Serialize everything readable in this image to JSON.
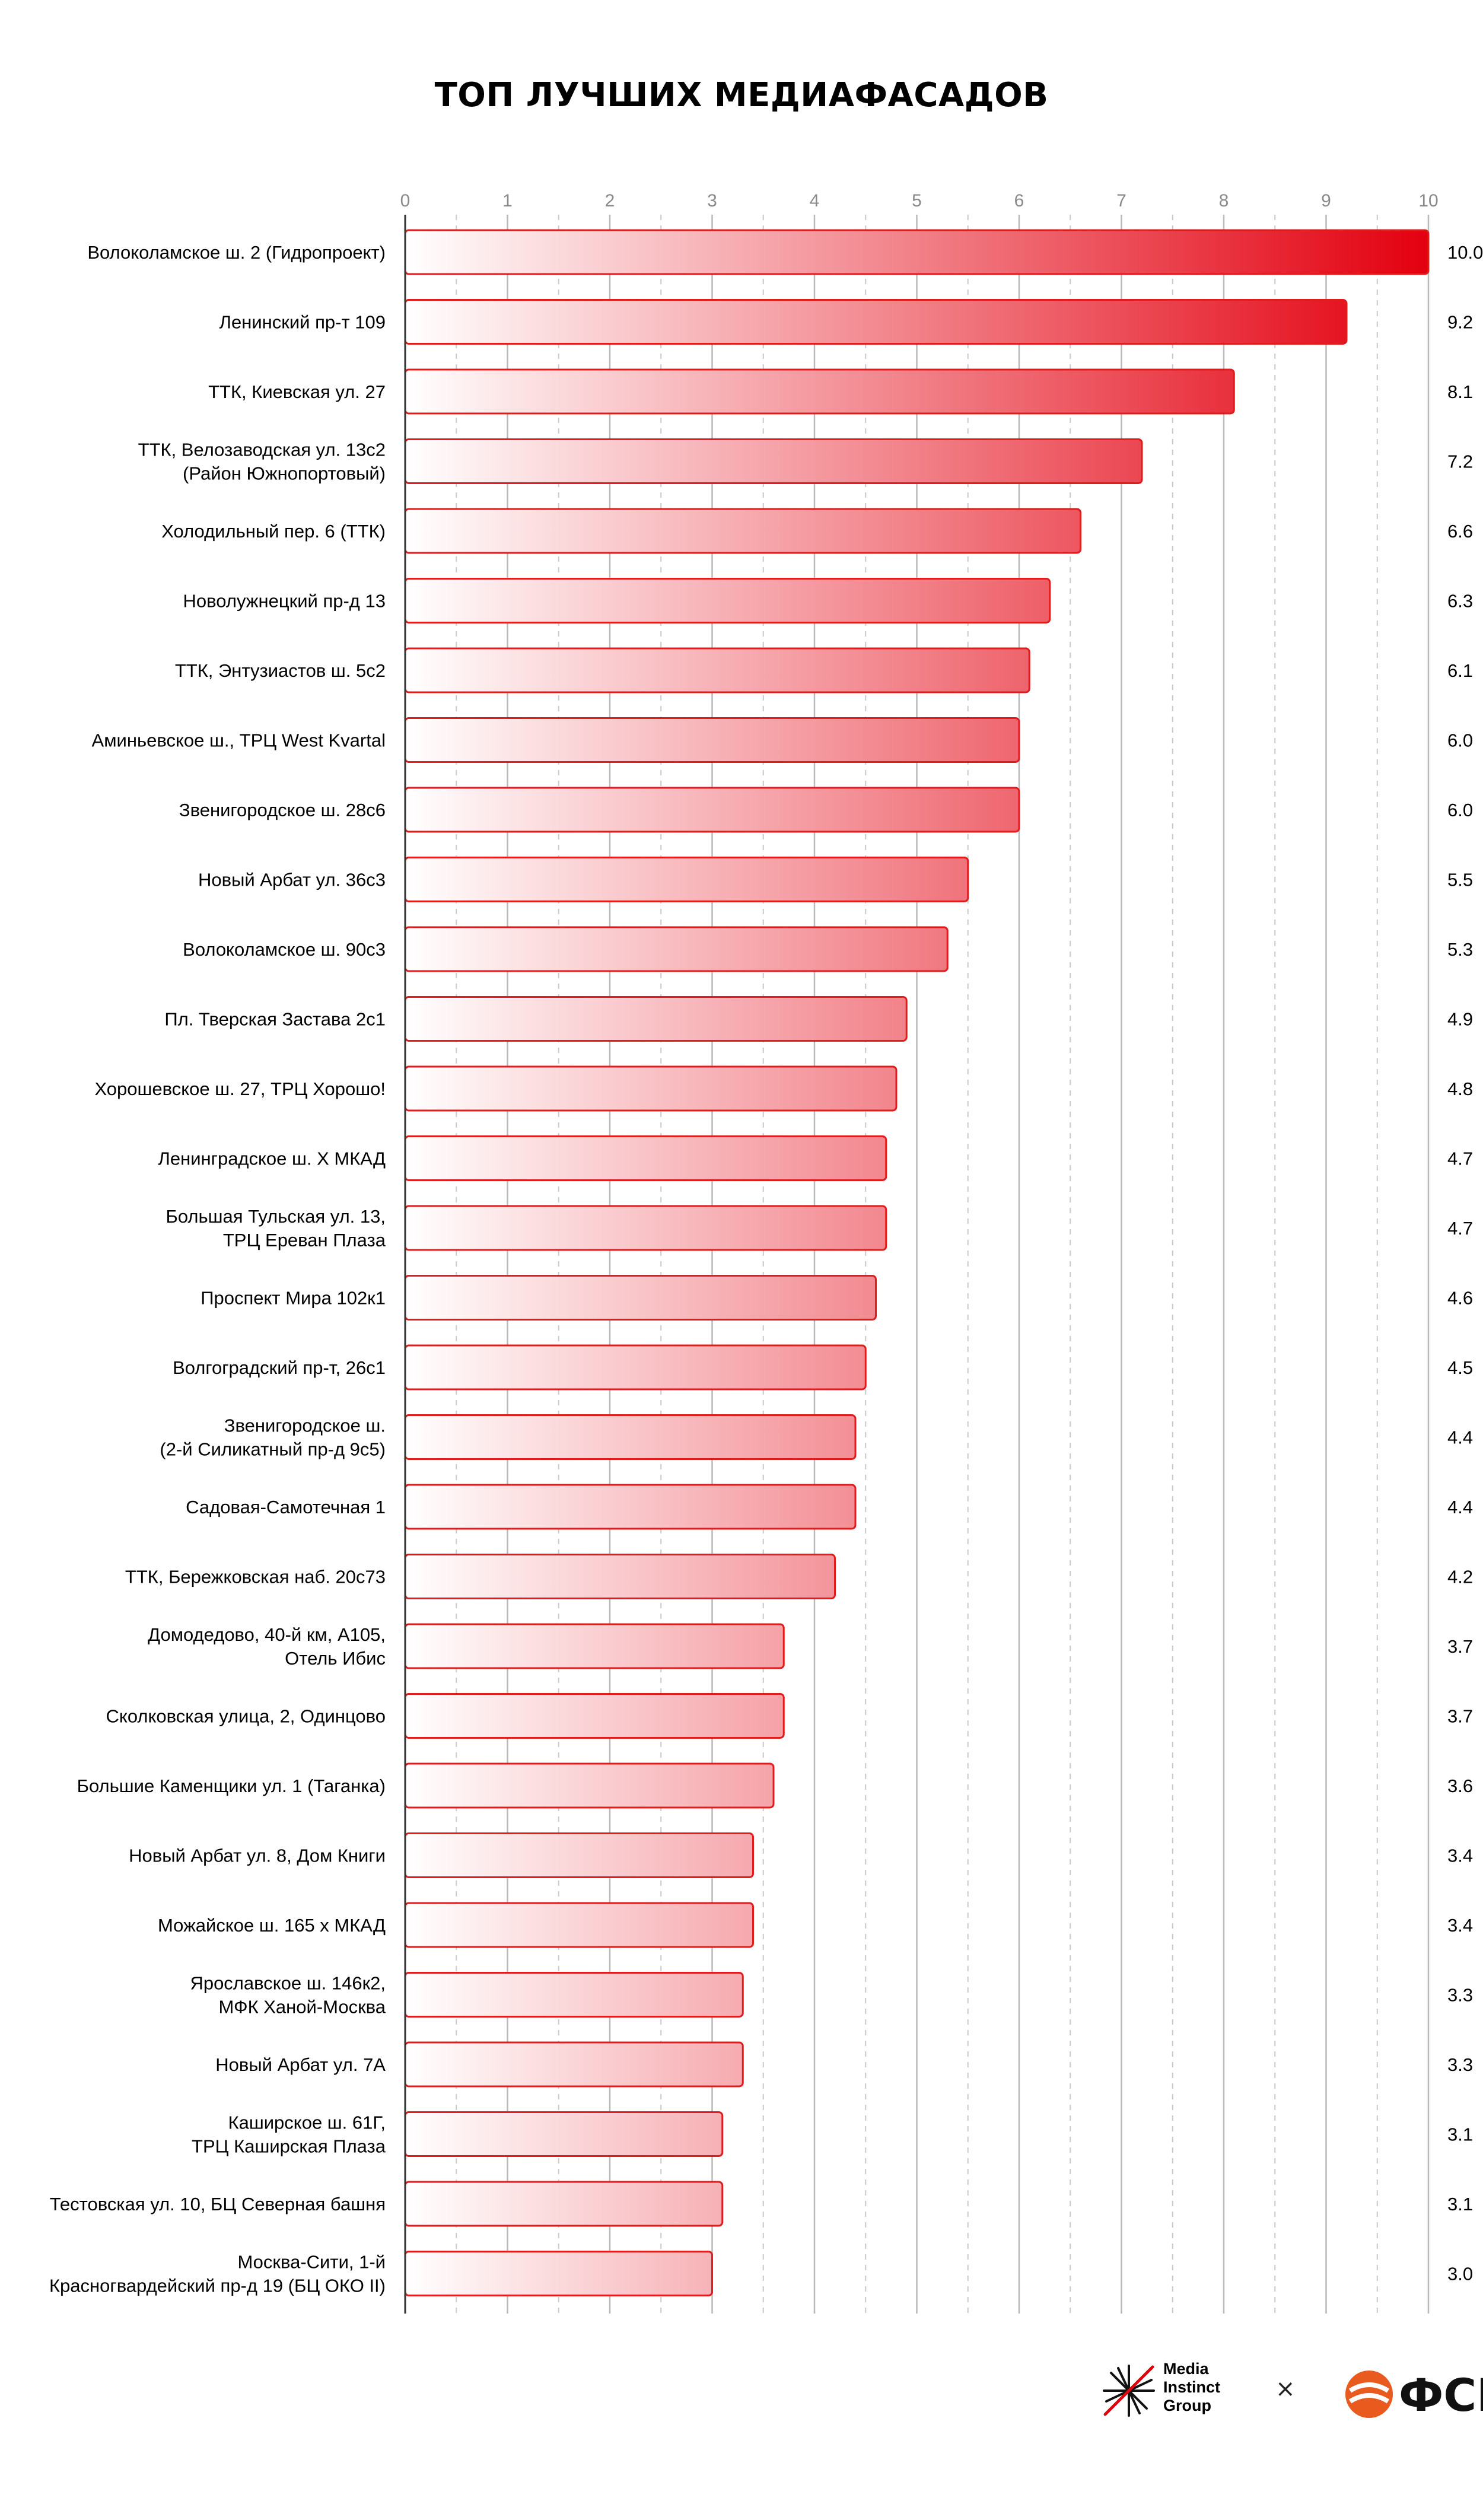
{
  "chart_data": {
    "type": "bar",
    "orientation": "horizontal",
    "title": "ТОП ЛУЧШИХ МЕДИАФАСАДОВ",
    "xlim": [
      0,
      10
    ],
    "x_ticks": [
      "0",
      "1",
      "2",
      "3",
      "4",
      "5",
      "6",
      "7",
      "8",
      "9",
      "10"
    ],
    "grid": "on",
    "bar_gradient": {
      "from": "#ffffff",
      "to": "#e3000f"
    },
    "bar_stroke": "#e01c1c",
    "categories": [
      "Волоколамское ш. 2 (Гидропроект)",
      "Ленинский пр-т 109",
      "ТТК, Киевская ул. 27",
      "ТТК, Велозаводская ул. 13с2\n(Район Южнопортовый)",
      "Холодильный пер. 6 (ТТК)",
      "Новолужнецкий пр-д 13",
      "ТТК, Энтузиастов ш. 5с2",
      "Аминьевское ш., ТРЦ West Kvartal",
      "Звенигородское ш. 28с6",
      "Новый Арбат ул. 36с3",
      "Волоколамское ш. 90с3",
      "Пл. Тверская Застава 2с1",
      "Хорошевское ш. 27, ТРЦ Хорошо!",
      "Ленинградское ш. Х МКАД",
      "Большая Тульская ул. 13,\nТРЦ Ереван Плаза",
      "Проспект Мира 102к1",
      "Волгоградский пр-т, 26с1",
      "Звенигородское ш.\n(2-й Силикатный пр-д 9с5)",
      "Садовая-Самотечная 1",
      "ТТК, Бережковская наб. 20с73",
      "Домодедово, 40-й км, А105,\nОтель Ибис",
      "Сколковская улица, 2, Одинцово",
      "Большие Каменщики ул. 1 (Таганка)",
      "Новый Арбат ул. 8, Дом Книги",
      "Можайское ш. 165 х МКАД",
      "Ярославское ш. 146к2,\nМФК Ханой-Москва",
      "Новый Арбат ул. 7А",
      "Каширское ш. 61Г,\nТРЦ Каширская Плаза",
      "Тестовская ул. 10, БЦ Северная башня",
      "Москва-Сити, 1-й\nКрасногвардейский пр-д 19 (БЦ ОКО II)"
    ],
    "values": [
      10.0,
      9.2,
      8.1,
      7.2,
      6.6,
      6.3,
      6.1,
      6.0,
      6.0,
      5.5,
      5.3,
      4.9,
      4.8,
      4.7,
      4.7,
      4.6,
      4.5,
      4.4,
      4.4,
      4.2,
      3.7,
      3.7,
      3.6,
      3.4,
      3.4,
      3.3,
      3.3,
      3.1,
      3.1,
      3.0
    ],
    "value_labels": [
      "10.0",
      "9.2",
      "8.1",
      "7.2",
      "6.6",
      "6.3",
      "6.1",
      "6.0",
      "6.0",
      "5.5",
      "5.3",
      "4.9",
      "4.8",
      "4.7",
      "4.7",
      "4.6",
      "4.5",
      "4.4",
      "4.4",
      "4.2",
      "3.7",
      "3.7",
      "3.6",
      "3.4",
      "3.4",
      "3.3",
      "3.3",
      "3.1",
      "3.1",
      "3.0"
    ]
  },
  "footer": {
    "logo_left": "Media\nInstinct\nGroup",
    "separator": "×",
    "logo_right": "ФСК",
    "logo_right_color": "#e85a1e"
  }
}
